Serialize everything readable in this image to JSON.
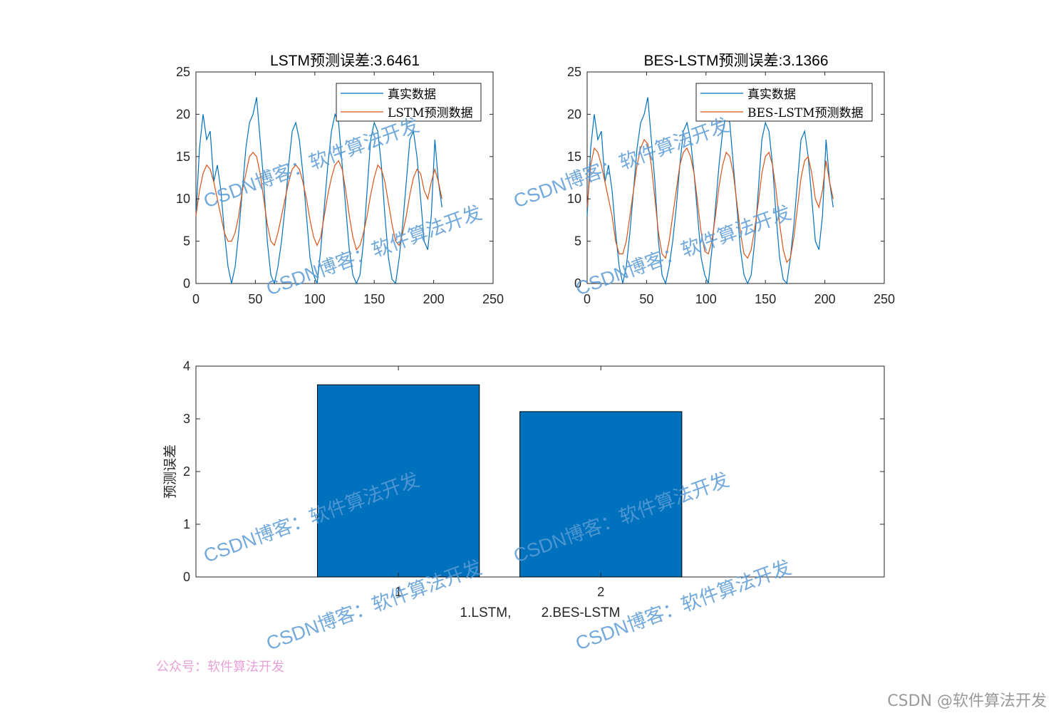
{
  "chart_data": [
    {
      "type": "line",
      "title": "LSTM预测误差:3.6461",
      "xlim": [
        0,
        250
      ],
      "ylim": [
        0,
        25
      ],
      "xticks": [
        "0",
        "50",
        "100",
        "150",
        "200",
        "250"
      ],
      "yticks": [
        "0",
        "5",
        "10",
        "15",
        "20",
        "25"
      ],
      "legend": {
        "placement": "top-right",
        "entries": [
          "真实数据",
          "LSTM预测数据"
        ]
      },
      "series": [
        {
          "name": "真实数据",
          "color": "#0072bd",
          "x": [
            0,
            3,
            6,
            9,
            12,
            15,
            18,
            21,
            24,
            27,
            30,
            33,
            36,
            39,
            42,
            45,
            48,
            51,
            54,
            57,
            60,
            63,
            66,
            69,
            72,
            75,
            78,
            81,
            84,
            87,
            90,
            93,
            96,
            99,
            102,
            105,
            108,
            111,
            114,
            117,
            120,
            123,
            126,
            129,
            132,
            135,
            138,
            141,
            144,
            147,
            150,
            153,
            156,
            159,
            162,
            165,
            168,
            171,
            174,
            177,
            180,
            183,
            186,
            189,
            192,
            195,
            198,
            201,
            204,
            207
          ],
          "y": [
            8,
            16,
            20,
            17,
            18,
            12,
            14,
            11,
            6,
            2,
            0,
            2,
            6,
            11,
            16,
            19,
            20,
            22,
            17,
            12,
            5,
            1,
            0,
            2,
            5,
            9,
            14,
            18,
            19,
            17,
            13,
            8,
            3,
            1,
            0,
            4,
            9,
            14,
            18,
            20,
            19,
            14,
            9,
            4,
            1,
            0,
            1,
            5,
            11,
            17,
            19,
            18,
            14,
            8,
            3,
            0.5,
            0,
            3,
            7,
            12,
            17,
            18,
            15,
            10,
            5,
            4,
            8,
            17,
            12,
            9
          ]
        },
        {
          "name": "LSTM预测数据",
          "color": "#d95319",
          "x": [
            0,
            3,
            6,
            9,
            12,
            15,
            18,
            21,
            24,
            27,
            30,
            33,
            36,
            39,
            42,
            45,
            48,
            51,
            54,
            57,
            60,
            63,
            66,
            69,
            72,
            75,
            78,
            81,
            84,
            87,
            90,
            93,
            96,
            99,
            102,
            105,
            108,
            111,
            114,
            117,
            120,
            123,
            126,
            129,
            132,
            135,
            138,
            141,
            144,
            147,
            150,
            153,
            156,
            159,
            162,
            165,
            168,
            171,
            174,
            177,
            180,
            183,
            186,
            189,
            192,
            195,
            198,
            201,
            204,
            207
          ],
          "y": [
            8,
            11,
            13,
            14,
            13.5,
            12,
            10,
            8,
            6,
            5,
            5,
            6,
            8,
            11,
            13,
            15,
            15.5,
            15,
            13,
            10,
            7,
            5,
            4.5,
            6,
            8,
            10,
            12,
            13.5,
            14,
            13.5,
            12,
            10,
            7.5,
            5.5,
            4.5,
            5.5,
            8,
            10.5,
            12.5,
            14,
            14.5,
            13.5,
            11,
            8,
            5.5,
            4,
            4.5,
            6,
            8,
            10.5,
            12.5,
            14,
            13.5,
            12,
            9.5,
            7,
            5,
            4.5,
            6,
            8,
            10.5,
            12.5,
            13.5,
            13,
            11,
            10,
            12,
            13.5,
            12,
            10
          ]
        }
      ]
    },
    {
      "type": "line",
      "title": "BES-LSTM预测误差:3.1366",
      "xlim": [
        0,
        250
      ],
      "ylim": [
        0,
        25
      ],
      "xticks": [
        "0",
        "50",
        "100",
        "150",
        "200",
        "250"
      ],
      "yticks": [
        "0",
        "5",
        "10",
        "15",
        "20",
        "25"
      ],
      "legend": {
        "placement": "top-right",
        "entries": [
          "真实数据",
          "BES-LSTM预测数据"
        ]
      },
      "series": [
        {
          "name": "真实数据",
          "color": "#0072bd",
          "x": [
            0,
            3,
            6,
            9,
            12,
            15,
            18,
            21,
            24,
            27,
            30,
            33,
            36,
            39,
            42,
            45,
            48,
            51,
            54,
            57,
            60,
            63,
            66,
            69,
            72,
            75,
            78,
            81,
            84,
            87,
            90,
            93,
            96,
            99,
            102,
            105,
            108,
            111,
            114,
            117,
            120,
            123,
            126,
            129,
            132,
            135,
            138,
            141,
            144,
            147,
            150,
            153,
            156,
            159,
            162,
            165,
            168,
            171,
            174,
            177,
            180,
            183,
            186,
            189,
            192,
            195,
            198,
            201,
            204,
            207
          ],
          "y": [
            8,
            16,
            20,
            17,
            18,
            12,
            14,
            11,
            6,
            2,
            0,
            2,
            6,
            11,
            16,
            19,
            20,
            22,
            17,
            12,
            5,
            1,
            0,
            2,
            5,
            9,
            14,
            18,
            19,
            17,
            13,
            8,
            3,
            1,
            0,
            4,
            9,
            14,
            18,
            20,
            19,
            14,
            9,
            4,
            1,
            0,
            1,
            5,
            11,
            17,
            19,
            18,
            14,
            8,
            3,
            0.5,
            0,
            3,
            7,
            12,
            17,
            18,
            15,
            10,
            5,
            4,
            8,
            17,
            12,
            9
          ]
        },
        {
          "name": "BES-LSTM预测数据",
          "color": "#d95319",
          "x": [
            0,
            3,
            6,
            9,
            12,
            15,
            18,
            21,
            24,
            27,
            30,
            33,
            36,
            39,
            42,
            45,
            48,
            51,
            54,
            57,
            60,
            63,
            66,
            69,
            72,
            75,
            78,
            81,
            84,
            87,
            90,
            93,
            96,
            99,
            102,
            105,
            108,
            111,
            114,
            117,
            120,
            123,
            126,
            129,
            132,
            135,
            138,
            141,
            144,
            147,
            150,
            153,
            156,
            159,
            162,
            165,
            168,
            171,
            174,
            177,
            180,
            183,
            186,
            189,
            192,
            195,
            198,
            201,
            204,
            207
          ],
          "y": [
            9,
            14,
            16,
            15.5,
            14,
            12,
            10,
            8,
            5,
            3.5,
            3.5,
            5,
            8,
            11,
            14,
            16,
            17,
            16.5,
            14,
            10,
            6,
            3.5,
            3,
            5,
            8,
            11,
            14,
            15.5,
            16,
            15,
            13,
            9.5,
            6,
            3.8,
            3.5,
            5,
            8,
            11.5,
            14,
            15.5,
            15,
            13,
            9.5,
            6,
            3.5,
            3,
            4,
            6.5,
            9.5,
            13,
            15,
            15.5,
            14,
            11,
            7,
            4,
            2.5,
            3,
            5.5,
            9,
            12.5,
            14.5,
            15,
            13,
            10,
            9,
            11,
            14.5,
            12,
            10
          ]
        }
      ]
    },
    {
      "type": "bar",
      "categories": [
        "1",
        "2"
      ],
      "values": [
        3.6461,
        3.1366
      ],
      "color": "#0072bd",
      "xlim": [
        0,
        3.4
      ],
      "ylim": [
        0,
        4
      ],
      "yticks": [
        "0",
        "1",
        "2",
        "3",
        "4"
      ],
      "ylabel": "预测误差",
      "xlabel": "1.LSTM,        2.BES-LSTM"
    }
  ],
  "watermarks": {
    "csdn_blog": "CSDN博客：软件算法开发",
    "wechat": "公众号：软件算法开发",
    "corner": "CSDN @软件算法开发"
  }
}
